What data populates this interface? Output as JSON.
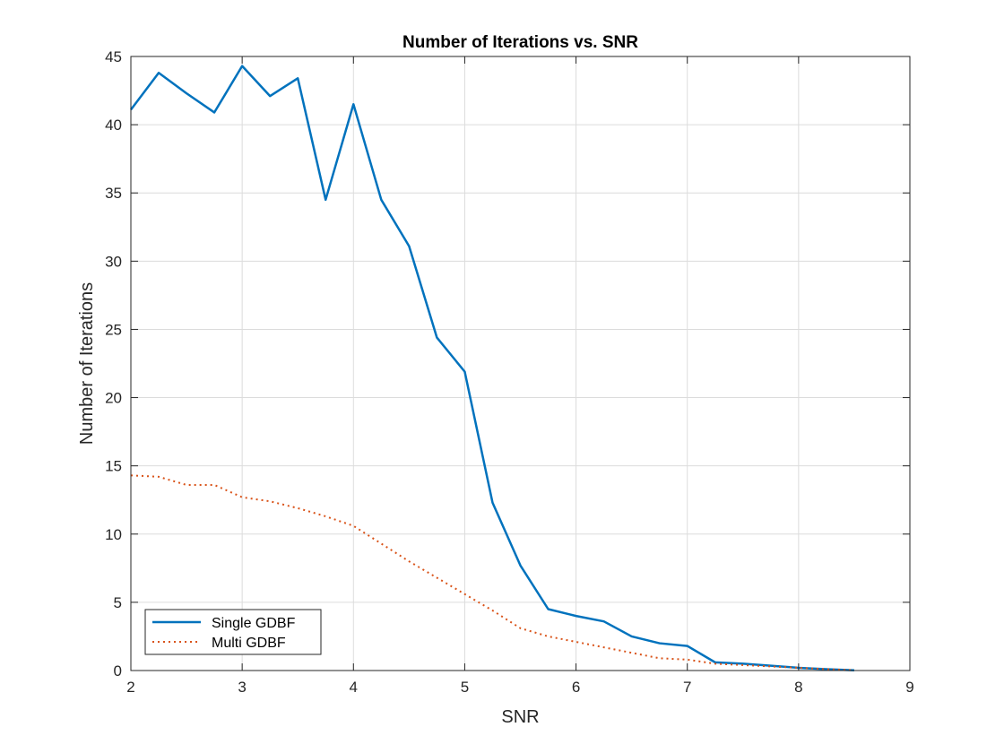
{
  "chart_data": {
    "type": "line",
    "title": "Number of Iterations vs. SNR",
    "xlabel": "SNR",
    "ylabel": "Number of Iterations",
    "xlim": [
      2,
      9
    ],
    "ylim": [
      0,
      45
    ],
    "xticks": [
      2,
      3,
      4,
      5,
      6,
      7,
      8,
      9
    ],
    "yticks": [
      0,
      5,
      10,
      15,
      20,
      25,
      30,
      35,
      40,
      45
    ],
    "grid": true,
    "legend_position": "bottom-left",
    "x": [
      2,
      2.25,
      2.5,
      2.75,
      3,
      3.25,
      3.5,
      3.75,
      4,
      4.25,
      4.5,
      4.75,
      5,
      5.25,
      5.5,
      5.75,
      6,
      6.25,
      6.5,
      6.75,
      7,
      7.25,
      7.5,
      7.75,
      8,
      8.25,
      8.5
    ],
    "series": [
      {
        "name": "Single GDBF",
        "color": "#0072BD",
        "style": "solid",
        "values": [
          41.1,
          43.8,
          42.3,
          40.9,
          44.3,
          42.1,
          43.4,
          34.5,
          41.5,
          34.5,
          31.1,
          24.4,
          21.9,
          12.3,
          7.7,
          4.5,
          4.0,
          3.6,
          2.5,
          2.0,
          1.8,
          0.6,
          0.5,
          0.35,
          0.2,
          0.1,
          0.02
        ]
      },
      {
        "name": "Multi GDBF",
        "color": "#D95319",
        "style": "dotted",
        "values": [
          14.3,
          14.2,
          13.6,
          13.6,
          12.7,
          12.4,
          11.9,
          11.3,
          10.6,
          9.3,
          8.0,
          6.8,
          5.6,
          4.4,
          3.1,
          2.5,
          2.1,
          1.7,
          1.3,
          0.9,
          0.8,
          0.5,
          0.4,
          0.3,
          0.2,
          0.1,
          0.02
        ]
      }
    ]
  }
}
